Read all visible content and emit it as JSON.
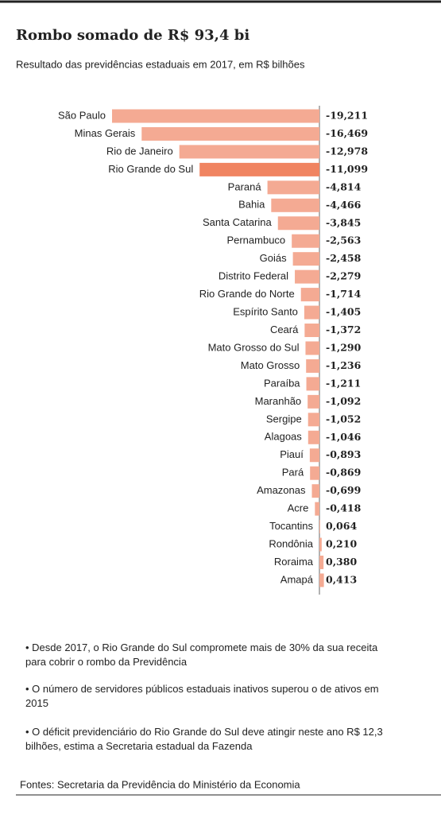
{
  "chart_data": {
    "type": "barh",
    "title": "Rombo somado de R$ 93,4 bi",
    "subtitle": "Resultado das previdências estaduais em 2017, em R$ bilhões",
    "categories": [
      "São Paulo",
      "Minas Gerais",
      "Rio de Janeiro",
      "Rio Grande do Sul",
      "Paraná",
      "Bahia",
      "Santa Catarina",
      "Pernambuco",
      "Goiás",
      "Distrito Federal",
      "Rio Grande do Norte",
      "Espírito Santo",
      "Ceará",
      "Mato Grosso do Sul",
      "Mato Grosso",
      "Paraíba",
      "Maranhão",
      "Sergipe",
      "Alagoas",
      "Piauí",
      "Pará",
      "Amazonas",
      "Acre",
      "Tocantins",
      "Rondônia",
      "Roraima",
      "Amapá"
    ],
    "values": [
      -19.211,
      -16.469,
      -12.978,
      -11.099,
      -4.814,
      -4.466,
      -3.845,
      -2.563,
      -2.458,
      -2.279,
      -1.714,
      -1.405,
      -1.372,
      -1.29,
      -1.236,
      -1.211,
      -1.092,
      -1.052,
      -1.046,
      -0.893,
      -0.869,
      -0.699,
      -0.418,
      0.064,
      0.21,
      0.38,
      0.413
    ],
    "value_labels": [
      "-19,211",
      "-16,469",
      "-12,978",
      "-11,099",
      "-4,814",
      "-4,466",
      "-3,845",
      "-2,563",
      "-2,458",
      "-2,279",
      "-1,714",
      "-1,405",
      "-1,372",
      "-1,290",
      "-1,236",
      "-1,211",
      "-1,092",
      "-1,052",
      "-1,046",
      "-0,893",
      "-0,869",
      "-0,699",
      "-0,418",
      "0,064",
      "0,210",
      "0,380",
      "0,413"
    ],
    "colors": [
      "#f4aa93",
      "#f4aa93",
      "#f4aa93",
      "#f08461",
      "#f4aa93",
      "#f4aa93",
      "#f4aa93",
      "#f4aa93",
      "#f4aa93",
      "#f4aa93",
      "#f4aa93",
      "#f4aa93",
      "#f4aa93",
      "#f4aa93",
      "#f4aa93",
      "#f4aa93",
      "#f4aa93",
      "#f4aa93",
      "#f4aa93",
      "#f4aa93",
      "#f4aa93",
      "#f4aa93",
      "#f4aa93",
      "#f4aa93",
      "#f4aa93",
      "#f4aa93",
      "#f4aa93"
    ],
    "notes": [
      "• Desde 2017, o Rio Grande do Sul compromete mais de 30% da sua receita para cobrir o rombo da Previdência",
      "• O número de servidores públicos estaduais inativos superou o de ativos em 2015",
      "• O déficit previdenciário do Rio Grande do Sul deve atingir neste ano R$ 12,3 bilhões, estima a Secretaria estadual da Fazenda"
    ],
    "source": "Fontes: Secretaria da Previdência do Ministério da Economia"
  }
}
